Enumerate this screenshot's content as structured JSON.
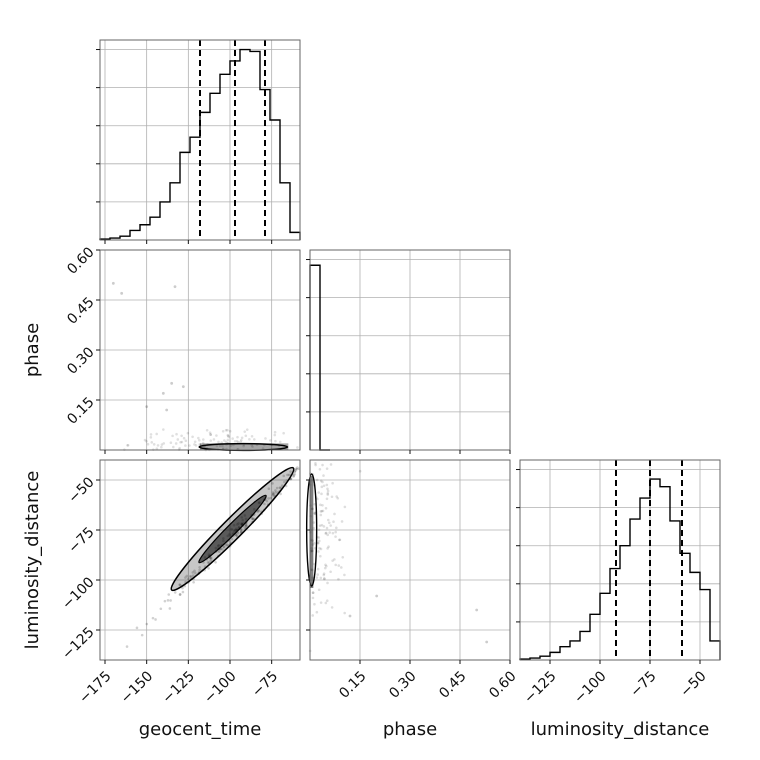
{
  "chart_data": {
    "type": "corner",
    "parameters": [
      "geocent_time",
      "phase",
      "luminosity_distance"
    ],
    "grid": true,
    "colors": {
      "line": "#000000",
      "grid": "#b0b0b0",
      "scatter": "#000000",
      "density": "#000000"
    },
    "panels": [
      {
        "id": "hist-geocent_time",
        "type": "histogram",
        "xlim": [
          -178,
          -58
        ],
        "ylim": [
          0,
          1.05
        ],
        "show_yticks_labels": false,
        "bin_edges": [
          -178,
          -172,
          -166,
          -160,
          -154,
          -148,
          -142,
          -136,
          -130,
          -124,
          -118,
          -112,
          -106,
          -100,
          -94,
          -88,
          -82,
          -76,
          -70,
          -64,
          -58
        ],
        "counts": [
          0.005,
          0.01,
          0.02,
          0.05,
          0.08,
          0.12,
          0.2,
          0.3,
          0.46,
          0.54,
          0.67,
          0.77,
          0.87,
          0.94,
          1.0,
          0.99,
          0.79,
          0.63,
          0.3,
          0.04
        ],
        "quantiles": [
          -118,
          -97,
          -79
        ],
        "yticks": [
          0.2,
          0.4,
          0.6,
          0.8,
          1.0
        ],
        "xticks": [
          -175,
          -150,
          -125,
          -100,
          -75
        ]
      },
      {
        "id": "hist-phase",
        "type": "histogram",
        "xlim": [
          0,
          0.6
        ],
        "ylim": [
          0,
          1.05
        ],
        "show_yticks_labels": false,
        "bin_edges": [
          0,
          0.03,
          0.06
        ],
        "counts": [
          0.97,
          0
        ],
        "quantiles": [],
        "yticks": [
          0.2,
          0.4,
          0.6,
          0.8,
          1.0
        ],
        "xticks": [
          0.15,
          0.3,
          0.45,
          0.6
        ]
      },
      {
        "id": "hist-luminosity_distance",
        "type": "histogram",
        "xlim": [
          -140,
          -40
        ],
        "ylim": [
          0,
          1.05
        ],
        "show_yticks_labels": false,
        "bin_edges": [
          -140,
          -135,
          -130,
          -125,
          -120,
          -115,
          -110,
          -105,
          -100,
          -95,
          -90,
          -85,
          -80,
          -75,
          -70,
          -65,
          -60,
          -55,
          -50,
          -45,
          -40
        ],
        "counts": [
          0.005,
          0.01,
          0.02,
          0.04,
          0.07,
          0.1,
          0.15,
          0.24,
          0.35,
          0.48,
          0.6,
          0.74,
          0.85,
          0.95,
          0.91,
          0.73,
          0.56,
          0.46,
          0.37,
          0.1
        ],
        "quantiles": [
          -92,
          -75,
          -59
        ],
        "yticks": [
          0.2,
          0.4,
          0.6,
          0.8,
          1.0
        ],
        "xticks": [
          -125,
          -100,
          -75,
          -50
        ]
      },
      {
        "id": "2d-geocent_time-phase",
        "type": "2d",
        "xlim": [
          -178,
          -58
        ],
        "ylim": [
          0,
          0.6
        ],
        "xticks": [
          -175,
          -150,
          -125,
          -100,
          -75
        ],
        "yticks": [
          0.15,
          0.3,
          0.45,
          0.6
        ],
        "ytick_labels": [
          "0.15",
          "0.30",
          "0.45",
          "0.60"
        ]
      },
      {
        "id": "2d-geocent_time-luminosity_distance",
        "type": "2d",
        "xlim": [
          -178,
          -58
        ],
        "ylim": [
          -140,
          -40
        ],
        "xticks": [
          -175,
          -150,
          -125,
          -100,
          -75
        ],
        "xtick_labels": [
          "−175",
          "−150",
          "−125",
          "−100",
          "−75"
        ],
        "yticks": [
          -125,
          -100,
          -75,
          -50
        ],
        "ytick_labels": [
          "−125",
          "−100",
          "−75",
          "−50"
        ]
      },
      {
        "id": "2d-phase-luminosity_distance",
        "type": "2d",
        "xlim": [
          0,
          0.6
        ],
        "ylim": [
          -140,
          -40
        ],
        "xticks": [
          0.15,
          0.3,
          0.45,
          0.6
        ],
        "xtick_labels": [
          "0.15",
          "0.30",
          "0.45",
          "0.60"
        ],
        "yticks": [
          -125,
          -100,
          -75,
          -50
        ]
      }
    ],
    "bottom_tick_labels_hist3": [
      "−125",
      "−100",
      "−75",
      "−50"
    ],
    "axis_labels": {
      "x": [
        "geocent_time",
        "phase",
        "luminosity_distance"
      ],
      "y": [
        "phase",
        "luminosity_distance"
      ]
    }
  }
}
